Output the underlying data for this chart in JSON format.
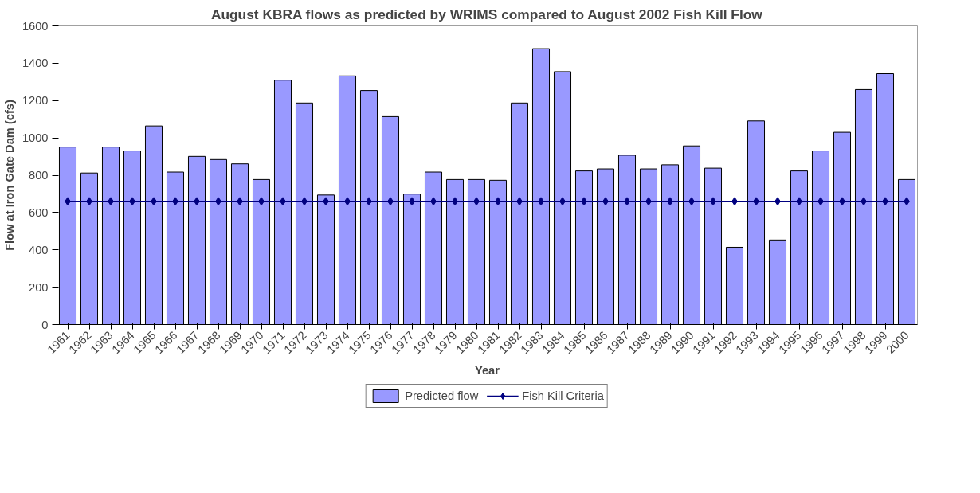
{
  "chart_data": {
    "type": "bar",
    "title": "August KBRA flows as predicted by WRIMS compared to August 2002 Fish Kill Flow",
    "xlabel": "Year",
    "ylabel": "Flow at Iron Gate Dam (cfs)",
    "categories": [
      "1961",
      "1962",
      "1963",
      "1964",
      "1965",
      "1966",
      "1967",
      "1968",
      "1969",
      "1970",
      "1971",
      "1972",
      "1973",
      "1974",
      "1975",
      "1976",
      "1977",
      "1978",
      "1979",
      "1980",
      "1981",
      "1982",
      "1983",
      "1984",
      "1985",
      "1986",
      "1987",
      "1988",
      "1989",
      "1990",
      "1991",
      "1992",
      "1993",
      "1994",
      "1995",
      "1996",
      "1997",
      "1998",
      "1999",
      "2000"
    ],
    "series": [
      {
        "name": "Predicted flow",
        "color": "#9999ff",
        "values": [
          951,
          812,
          951,
          930,
          1064,
          817,
          901,
          884,
          861,
          777,
          1309,
          1187,
          694,
          1332,
          1254,
          1114,
          699,
          817,
          777,
          777,
          773,
          1187,
          1478,
          1355,
          823,
          834,
          907,
          834,
          856,
          957,
          838,
          414,
          1091,
          453,
          823,
          930,
          1030,
          1259,
          1344,
          777
        ]
      },
      {
        "name": "Fish Kill Criteria",
        "type": "line",
        "color": "#000080",
        "marker": "diamond",
        "values": [
          660,
          660,
          660,
          660,
          660,
          660,
          660,
          660,
          660,
          660,
          660,
          660,
          660,
          660,
          660,
          660,
          660,
          660,
          660,
          660,
          660,
          660,
          660,
          660,
          660,
          660,
          660,
          660,
          660,
          660,
          660,
          660,
          660,
          660,
          660,
          660,
          660,
          660,
          660,
          660
        ]
      }
    ],
    "ylim": [
      0,
      1600
    ],
    "yticks": [
      0,
      200,
      400,
      600,
      800,
      1000,
      1200,
      1400,
      1600
    ],
    "grid": false,
    "legend": "bottom"
  }
}
